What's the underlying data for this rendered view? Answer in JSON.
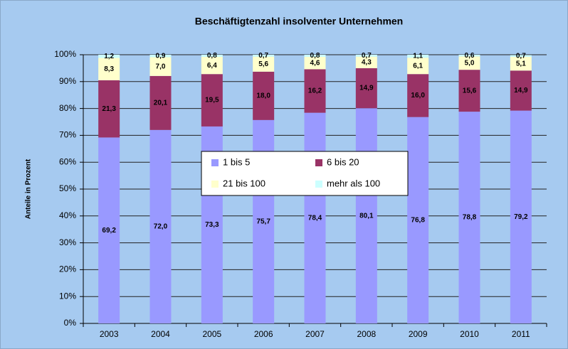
{
  "chart_data": {
    "type": "stacked_bar",
    "title": "Beschäftigtenzahl insolventer Unternehmen",
    "y_label": "Anteile in Prozent",
    "categories": [
      "2003",
      "2004",
      "2005",
      "2006",
      "2007",
      "2008",
      "2009",
      "2010",
      "2011"
    ],
    "series": [
      {
        "name": "1 bis 5",
        "color": "#9999ff",
        "values": [
          69.2,
          72.0,
          73.3,
          75.7,
          78.4,
          80.1,
          76.8,
          78.8,
          79.2
        ],
        "value_labels": [
          "69,2",
          "72,0",
          "73,3",
          "75,7",
          "78,4",
          "80,1",
          "76,8",
          "78,8",
          "79,2"
        ]
      },
      {
        "name": "6 bis 20",
        "color": "#993366",
        "values": [
          21.3,
          20.1,
          19.5,
          18.0,
          16.2,
          14.9,
          16.0,
          15.6,
          14.9
        ],
        "value_labels": [
          "21,3",
          "20,1",
          "19,5",
          "18,0",
          "16,2",
          "14,9",
          "16,0",
          "15,6",
          "14,9"
        ]
      },
      {
        "name": "21 bis 100",
        "color": "#ffffcc",
        "values": [
          8.3,
          7.0,
          6.4,
          5.6,
          4.6,
          4.3,
          6.1,
          5.0,
          5.1
        ],
        "value_labels": [
          "8,3",
          "7,0",
          "6,4",
          "5,6",
          "4,6",
          "4,3",
          "6,1",
          "5,0",
          "5,1"
        ]
      },
      {
        "name": "mehr als 100",
        "color": "#ccffff",
        "values": [
          1.2,
          0.9,
          0.8,
          0.7,
          0.8,
          0.7,
          1.1,
          0.6,
          0.7
        ],
        "value_labels": [
          "1,2",
          "0,9",
          "0,8",
          "0,7",
          "0,8",
          "0,7",
          "1,1",
          "0,6",
          "0,7"
        ]
      }
    ],
    "ylim": [
      0,
      100
    ],
    "yticks": [
      {
        "value": 0,
        "label": "0%"
      },
      {
        "value": 10,
        "label": "10%"
      },
      {
        "value": 20,
        "label": "20%"
      },
      {
        "value": 30,
        "label": "30%"
      },
      {
        "value": 40,
        "label": "40%"
      },
      {
        "value": 50,
        "label": "50%"
      },
      {
        "value": 60,
        "label": "60%"
      },
      {
        "value": 70,
        "label": "70%"
      },
      {
        "value": 80,
        "label": "80%"
      },
      {
        "value": 90,
        "label": "90%"
      },
      {
        "value": 100,
        "label": "100%"
      }
    ],
    "grid": true,
    "legend_position": "center"
  }
}
